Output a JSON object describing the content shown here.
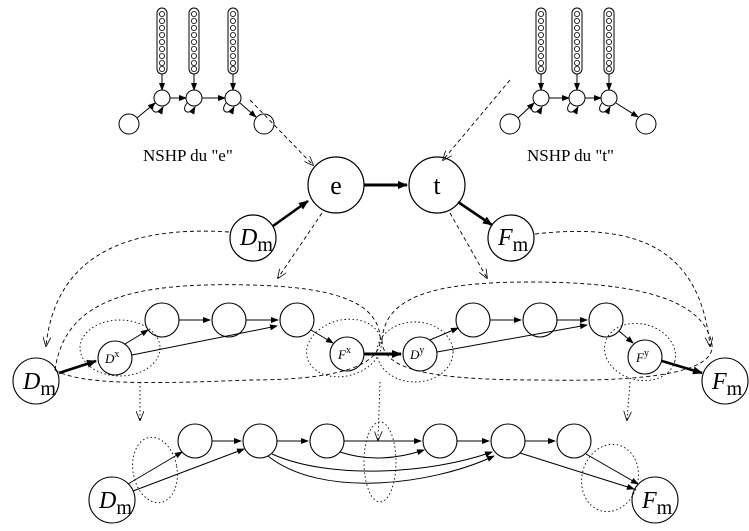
{
  "captions": {
    "left": "NSHP du \"e\"",
    "right": "NSHP du \"t\""
  },
  "states": {
    "e": "e",
    "t": "t"
  },
  "symbols": {
    "D": "D",
    "F": "F",
    "m": "m",
    "x": "x",
    "y": "y"
  }
}
